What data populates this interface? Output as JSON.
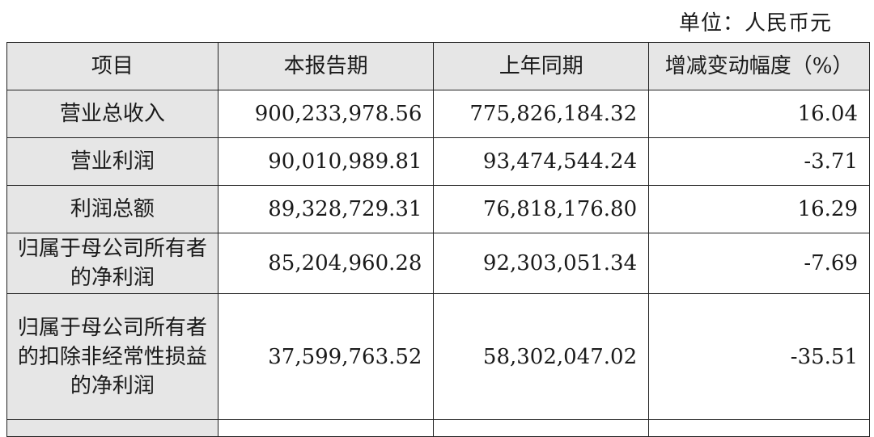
{
  "unit_label": "单位：人民币元",
  "table": {
    "headers": [
      "项目",
      "本报告期",
      "上年同期",
      "增减变动幅度（%）"
    ],
    "rows": [
      {
        "item": "营业总收入",
        "current": "900,233,978.56",
        "prior": "775,826,184.32",
        "change": "16.04"
      },
      {
        "item": "营业利润",
        "current": "90,010,989.81",
        "prior": "93,474,544.24",
        "change": "-3.71"
      },
      {
        "item": "利润总额",
        "current": "89,328,729.31",
        "prior": "76,818,176.80",
        "change": "16.29"
      },
      {
        "item": "归属于母公司所有者的净利润",
        "current": "85,204,960.28",
        "prior": "92,303,051.34",
        "change": "-7.69"
      },
      {
        "item": "归属于母公司所有者的扣除非经常性损益的净利润",
        "current": "37,599,763.52",
        "prior": "58,302,047.02",
        "change": "-35.51"
      }
    ]
  }
}
